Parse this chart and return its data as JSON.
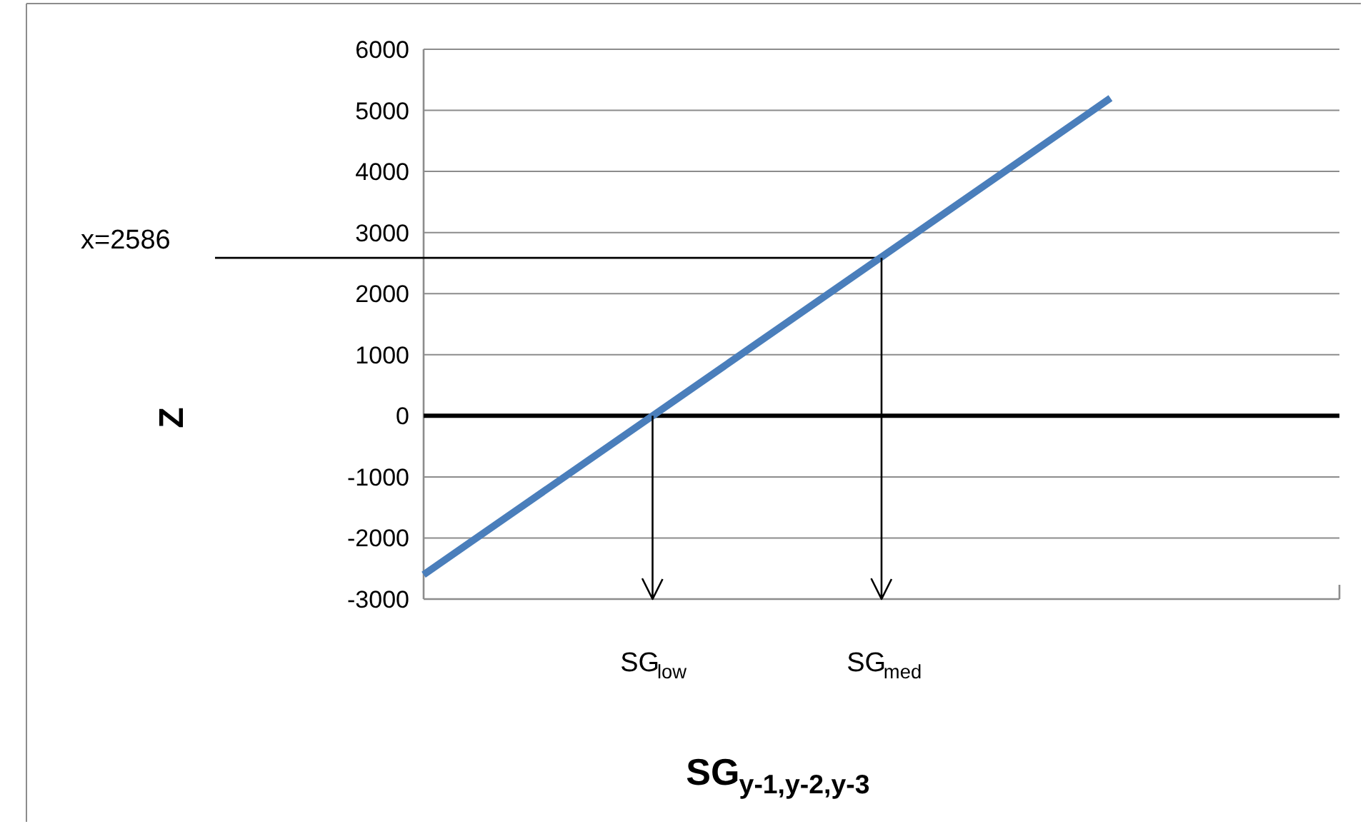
{
  "chart_data": {
    "type": "line",
    "xlabel": "SG$_{y-1,y-2,y-3}$",
    "ylabel": "Z",
    "categories": [
      null,
      "SG$_{low}$",
      "SG$_{med}$",
      null,
      null
    ],
    "series": [
      {
        "color": "#4a7ebb",
        "values": [
          -2600,
          0,
          2600,
          5200,
          null
        ]
      }
    ],
    "ylim": [
      -3000,
      6000
    ],
    "yticks": [
      -3000,
      -2000,
      -1000,
      0,
      1000,
      2000,
      3000,
      4000,
      5000,
      6000
    ],
    "grid": "y",
    "marker": "none",
    "line_style": "solid",
    "ref_lines": [
      {
        "axis": "y",
        "value": 0,
        "color": "#000000"
      },
      {
        "axis": "y",
        "value": 2586,
        "label": "x=2586",
        "color": "#000000"
      },
      {
        "axis": "x",
        "value": "SG$_{low}$",
        "color": "#000000"
      },
      {
        "axis": "x",
        "value": "SG$_{med}$",
        "color": "#000000"
      }
    ]
  }
}
